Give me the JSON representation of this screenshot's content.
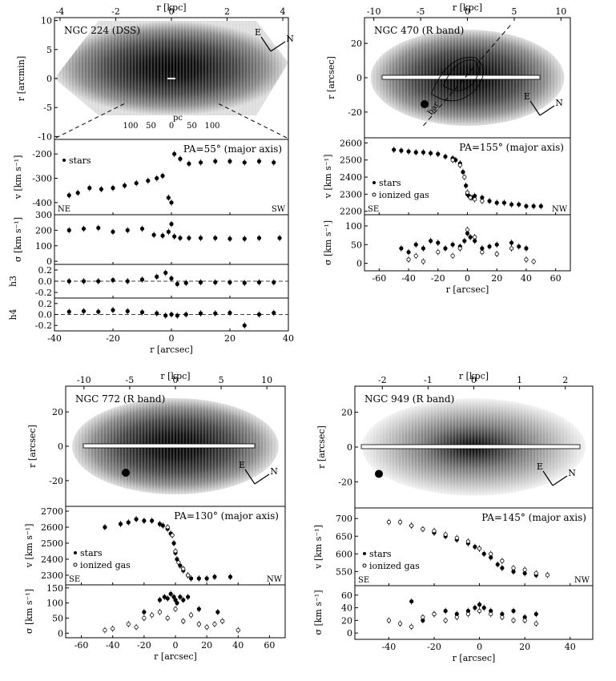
{
  "panels": [
    {
      "id": "ngc224",
      "title": "NGC 224 (DSS)",
      "top_axis_label": "r [kpc]",
      "top_ticks": [
        "-4",
        "-2",
        "0",
        "2",
        "4"
      ],
      "image_ylabel": "r [arcmin]",
      "image_yticks": [
        "10",
        "5",
        "0",
        "-5",
        "-10"
      ],
      "image_inner_ticks": [
        "100",
        "50",
        "0",
        "50",
        "100"
      ],
      "image_inner_unit": "pc",
      "compass": [
        "N",
        "E"
      ],
      "pa_label": "PA=55° (major axis)",
      "v_ylabel": "v [km s⁻¹]",
      "v_yticks": [
        "-200",
        "-300",
        "-400"
      ],
      "legend_stars": "stars",
      "side_left": "NE",
      "side_right": "SW",
      "s_ylabel": "σ [km s⁻¹]",
      "s_yticks": [
        "300",
        "200",
        "100",
        "0"
      ],
      "h3_label": "h3",
      "h3_ticks": [
        "0.2",
        "0.0",
        "-0.2"
      ],
      "h4_label": "h4",
      "h4_ticks": [
        "0.2",
        "0.0",
        "-0.2"
      ],
      "bottom_axis_label": "r [arcsec]",
      "bottom_ticks": [
        "-40",
        "-20",
        "0",
        "20",
        "40"
      ]
    },
    {
      "id": "ngc470",
      "title": "NGC 470 (R band)",
      "top_axis_label": "r [kpc]",
      "top_ticks": [
        "-10",
        "-5",
        "0",
        "5",
        "10"
      ],
      "image_ylabel": "r [arcsec]",
      "image_yticks": [
        "20",
        "0",
        "-20"
      ],
      "bar_label": "bar",
      "compass": [
        "N",
        "E"
      ],
      "pa_label": "PA=155° (major axis)",
      "v_ylabel": "v [km s⁻¹]",
      "v_yticks": [
        "2600",
        "2500",
        "2400",
        "2300",
        "2200"
      ],
      "legend_stars": "stars",
      "legend_gas": "ionized gas",
      "side_left": "SE",
      "side_right": "NW",
      "s_ylabel": "σ [km s⁻¹]",
      "s_yticks": [
        "100",
        "50",
        "0"
      ],
      "bottom_axis_label": "r [arcsec]",
      "bottom_ticks": [
        "-60",
        "-40",
        "-20",
        "0",
        "20",
        "40",
        "60"
      ]
    },
    {
      "id": "ngc772",
      "title": "NGC 772 (R band)",
      "top_axis_label": "r [kpc]",
      "top_ticks": [
        "-10",
        "-5",
        "0",
        "5",
        "10"
      ],
      "image_ylabel": "r [arcsec]",
      "image_yticks": [
        "20",
        "0",
        "-20"
      ],
      "compass": [
        "N",
        "E"
      ],
      "pa_label": "PA=130° (major axis)",
      "v_ylabel": "v [km s⁻¹]",
      "v_yticks": [
        "2700",
        "2600",
        "2500",
        "2400",
        "2300"
      ],
      "legend_stars": "stars",
      "legend_gas": "ionized gas",
      "side_left": "SE",
      "side_right": "NW",
      "s_ylabel": "σ [km s⁻¹]",
      "s_yticks": [
        "150",
        "100",
        "50",
        "0"
      ],
      "bottom_axis_label": "r [arcsec]",
      "bottom_ticks": [
        "-60",
        "-40",
        "-20",
        "0",
        "20",
        "40",
        "60"
      ]
    },
    {
      "id": "ngc949",
      "title": "NGC 949 (R band)",
      "top_axis_label": "r [kpc]",
      "top_ticks": [
        "-2",
        "-1",
        "0",
        "1",
        "2"
      ],
      "image_ylabel": "r [arcsec]",
      "image_yticks": [
        "20",
        "0",
        "-20"
      ],
      "compass": [
        "N",
        "E"
      ],
      "pa_label": "PA=145° (major axis)",
      "v_ylabel": "v [km s⁻¹]",
      "v_yticks": [
        "700",
        "650",
        "600",
        "550"
      ],
      "legend_stars": "stars",
      "legend_gas": "ionized gas",
      "side_left": "SE",
      "side_right": "NW",
      "s_ylabel": "σ [km s⁻¹]",
      "s_yticks": [
        "60",
        "40",
        "20",
        "0"
      ],
      "bottom_axis_label": "r [arcsec]",
      "bottom_ticks": [
        "-40",
        "-20",
        "0",
        "20",
        "40"
      ]
    }
  ],
  "chart_data": [
    {
      "type": "scatter",
      "panel": "NGC 224",
      "xlabel": "r [arcsec]",
      "xlim": [
        -40,
        40
      ],
      "series": [
        {
          "name": "stars",
          "quantity": "v",
          "x": [
            -35,
            -32,
            -28,
            -24,
            -20,
            -16,
            -12,
            -8,
            -5,
            -3,
            -1,
            0,
            1,
            3,
            6,
            10,
            15,
            20,
            25,
            30,
            35
          ],
          "y": [
            -370,
            -360,
            -340,
            -345,
            -340,
            -330,
            -320,
            -310,
            -300,
            -290,
            -380,
            -400,
            -200,
            -220,
            -240,
            -235,
            -230,
            -230,
            -235,
            -230,
            -235
          ]
        },
        {
          "name": "stars",
          "quantity": "sigma",
          "x": [
            -35,
            -30,
            -25,
            -20,
            -15,
            -10,
            -6,
            -3,
            -1,
            0,
            1,
            3,
            6,
            10,
            15,
            20,
            25,
            30,
            37
          ],
          "y": [
            200,
            210,
            215,
            190,
            200,
            210,
            170,
            165,
            190,
            240,
            160,
            150,
            150,
            150,
            150,
            145,
            145,
            150,
            150
          ]
        },
        {
          "name": "stars",
          "quantity": "h3",
          "x": [
            -35,
            -30,
            -25,
            -20,
            -15,
            -10,
            -5,
            -2,
            0,
            2,
            5,
            10,
            15,
            20,
            25,
            30,
            35
          ],
          "y": [
            0.0,
            0.0,
            0.0,
            0.02,
            0.0,
            0.03,
            0.08,
            0.15,
            0.05,
            -0.05,
            -0.03,
            -0.02,
            -0.02,
            -0.02,
            -0.03,
            -0.02,
            -0.02
          ]
        },
        {
          "name": "stars",
          "quantity": "h4",
          "x": [
            -35,
            -30,
            -25,
            -20,
            -15,
            -10,
            -5,
            -2,
            0,
            2,
            5,
            10,
            15,
            20,
            25,
            30,
            35
          ],
          "y": [
            0.05,
            0.06,
            0.05,
            0.08,
            0.06,
            0.04,
            0.02,
            -0.02,
            0.0,
            -0.02,
            0.0,
            0.02,
            0.02,
            0.03,
            -0.2,
            0.0,
            0.03
          ]
        }
      ]
    },
    {
      "type": "scatter",
      "panel": "NGC 470",
      "xlabel": "r [arcsec]",
      "xlim": [
        -70,
        70
      ],
      "series": [
        {
          "name": "stars",
          "quantity": "v",
          "x": [
            -50,
            -45,
            -40,
            -35,
            -30,
            -25,
            -20,
            -15,
            -10,
            -8,
            -5,
            -3,
            -1,
            0,
            1,
            3,
            5,
            10,
            15,
            20,
            25,
            30,
            35,
            40,
            45,
            50
          ],
          "y": [
            2560,
            2555,
            2550,
            2545,
            2545,
            2540,
            2535,
            2520,
            2510,
            2500,
            2480,
            2430,
            2350,
            2300,
            2290,
            2280,
            2290,
            2280,
            2260,
            2250,
            2250,
            2240,
            2240,
            2230,
            2230,
            2230
          ]
        },
        {
          "name": "ionized gas",
          "quantity": "v",
          "x": [
            -10,
            -5,
            -2,
            0,
            2,
            5,
            10
          ],
          "y": [
            2500,
            2470,
            2400,
            2310,
            2280,
            2270,
            2260
          ]
        },
        {
          "name": "stars",
          "quantity": "sigma",
          "x": [
            -45,
            -40,
            -35,
            -30,
            -25,
            -20,
            -15,
            -10,
            -5,
            -2,
            0,
            2,
            5,
            10,
            15,
            20,
            30,
            35,
            40
          ],
          "y": [
            40,
            30,
            50,
            40,
            60,
            55,
            40,
            50,
            45,
            60,
            80,
            70,
            60,
            40,
            45,
            50,
            55,
            45,
            40
          ]
        },
        {
          "name": "ionized gas",
          "quantity": "sigma",
          "x": [
            -40,
            -35,
            -30,
            -20,
            -10,
            -5,
            0,
            5,
            10,
            20,
            30,
            40,
            45
          ],
          "y": [
            10,
            20,
            5,
            30,
            20,
            40,
            90,
            70,
            30,
            25,
            40,
            10,
            5
          ]
        }
      ]
    },
    {
      "type": "scatter",
      "panel": "NGC 772",
      "xlabel": "r [arcsec]",
      "xlim": [
        -70,
        70
      ],
      "series": [
        {
          "name": "stars",
          "quantity": "v",
          "x": [
            -45,
            -35,
            -30,
            -25,
            -20,
            -15,
            -10,
            -8,
            -5,
            -3,
            -1,
            0,
            1,
            3,
            5,
            8,
            10,
            15,
            20,
            25,
            35
          ],
          "y": [
            2600,
            2620,
            2630,
            2650,
            2640,
            2640,
            2620,
            2610,
            2590,
            2560,
            2500,
            2440,
            2400,
            2360,
            2330,
            2300,
            2280,
            2280,
            2280,
            2290,
            2290
          ]
        },
        {
          "name": "ionized gas",
          "quantity": "v",
          "x": [
            -5,
            -2,
            0,
            2,
            5,
            8
          ],
          "y": [
            2600,
            2550,
            2450,
            2380,
            2340,
            2300
          ]
        },
        {
          "name": "stars",
          "quantity": "sigma",
          "x": [
            -20,
            -10,
            -7,
            -5,
            -3,
            -1,
            0,
            1,
            3,
            5,
            8,
            15,
            27
          ],
          "y": [
            70,
            110,
            120,
            115,
            130,
            120,
            110,
            100,
            120,
            110,
            120,
            80,
            70
          ]
        },
        {
          "name": "ionized gas",
          "quantity": "sigma",
          "x": [
            -45,
            -40,
            -30,
            -25,
            -20,
            -15,
            -10,
            -5,
            0,
            5,
            10,
            15,
            20,
            25,
            30,
            40
          ],
          "y": [
            10,
            15,
            30,
            20,
            50,
            60,
            70,
            50,
            80,
            40,
            60,
            30,
            20,
            30,
            40,
            10
          ]
        }
      ]
    },
    {
      "type": "scatter",
      "panel": "NGC 949",
      "xlabel": "r [arcsec]",
      "xlim": [
        -55,
        50
      ],
      "series": [
        {
          "name": "stars",
          "quantity": "v",
          "x": [
            -30,
            -25,
            -20,
            -15,
            -10,
            -5,
            -2,
            0,
            2,
            5,
            8,
            10,
            15,
            20,
            25
          ],
          "y": [
            680,
            670,
            660,
            650,
            640,
            630,
            620,
            615,
            600,
            590,
            570,
            560,
            550,
            545,
            540
          ]
        },
        {
          "name": "ionized gas",
          "quantity": "v",
          "x": [
            -40,
            -35,
            -30,
            -25,
            -20,
            -15,
            -10,
            -5,
            0,
            5,
            10,
            15,
            20,
            25,
            30
          ],
          "y": [
            690,
            690,
            680,
            670,
            665,
            655,
            645,
            635,
            615,
            600,
            580,
            560,
            555,
            545,
            540
          ]
        },
        {
          "name": "stars",
          "quantity": "sigma",
          "x": [
            -30,
            -25,
            -20,
            -15,
            -10,
            -5,
            -2,
            0,
            2,
            5,
            10,
            15,
            20,
            25
          ],
          "y": [
            50,
            20,
            30,
            35,
            30,
            35,
            40,
            45,
            40,
            35,
            30,
            35,
            25,
            30
          ]
        },
        {
          "name": "ionized gas",
          "quantity": "sigma",
          "x": [
            -40,
            -35,
            -30,
            -25,
            -20,
            -15,
            -10,
            -5,
            0,
            5,
            10,
            15,
            20,
            25
          ],
          "y": [
            20,
            15,
            10,
            25,
            30,
            20,
            25,
            30,
            35,
            30,
            25,
            20,
            20,
            15
          ]
        }
      ]
    }
  ]
}
